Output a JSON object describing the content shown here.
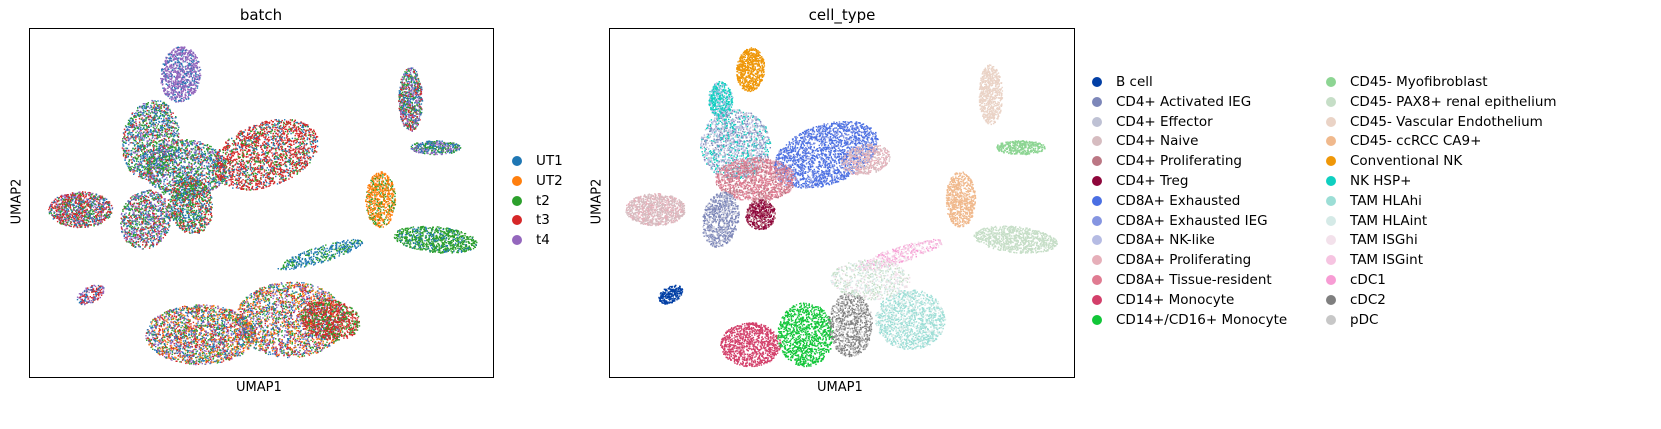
{
  "chart_data": [
    {
      "type": "scatter",
      "title": "batch",
      "xlabel": "UMAP1",
      "ylabel": "UMAP2",
      "grid": false,
      "legend_placement": "right",
      "series": [
        {
          "name": "UT1",
          "color": "#1f77b4"
        },
        {
          "name": "UT2",
          "color": "#ff7f0e"
        },
        {
          "name": "t2",
          "color": "#2ca02c"
        },
        {
          "name": "t3",
          "color": "#d62728"
        },
        {
          "name": "t4",
          "color": "#9467bd"
        }
      ]
    },
    {
      "type": "scatter",
      "title": "cell_type",
      "xlabel": "UMAP1",
      "ylabel": "UMAP2",
      "grid": false,
      "legend_placement": "right",
      "series": [
        {
          "name": "B cell",
          "color": "#023fa5"
        },
        {
          "name": "CD4+ Activated IEG",
          "color": "#7d87b9"
        },
        {
          "name": "CD4+ Effector",
          "color": "#bec1d4"
        },
        {
          "name": "CD4+ Naive",
          "color": "#d6bcc0"
        },
        {
          "name": "CD4+ Proliferating",
          "color": "#bb7784"
        },
        {
          "name": "CD4+ Treg",
          "color": "#8e063b"
        },
        {
          "name": "CD8A+ Exhausted",
          "color": "#4a6fe3"
        },
        {
          "name": "CD8A+ Exhausted IEG",
          "color": "#8595e1"
        },
        {
          "name": "CD8A+ NK-like",
          "color": "#b5bbe3"
        },
        {
          "name": "CD8A+ Proliferating",
          "color": "#e6afb9"
        },
        {
          "name": "CD8A+ Tissue-resident",
          "color": "#e07b91"
        },
        {
          "name": "CD14+ Monocyte",
          "color": "#d33f6a"
        },
        {
          "name": "CD14+/CD16+ Monocyte",
          "color": "#11c638"
        },
        {
          "name": "CD45- Myofibroblast",
          "color": "#8dd593"
        },
        {
          "name": "CD45- PAX8+ renal epithelium",
          "color": "#c6dec7"
        },
        {
          "name": "CD45- Vascular Endothelium",
          "color": "#ead3c6"
        },
        {
          "name": "CD45- ccRCC CA9+",
          "color": "#f0b98d"
        },
        {
          "name": "Conventional NK",
          "color": "#ef9708"
        },
        {
          "name": "NK HSP+",
          "color": "#0fcfc0"
        },
        {
          "name": "TAM HLAhi",
          "color": "#9cded6"
        },
        {
          "name": "TAM HLAint",
          "color": "#d5eae7"
        },
        {
          "name": "TAM ISGhi",
          "color": "#f3e1eb"
        },
        {
          "name": "TAM ISGint",
          "color": "#f6c4e1"
        },
        {
          "name": "cDC1",
          "color": "#f79cd4"
        },
        {
          "name": "cDC2",
          "color": "#7f7f7f"
        },
        {
          "name": "pDC",
          "color": "#c7c7c7"
        }
      ]
    }
  ]
}
